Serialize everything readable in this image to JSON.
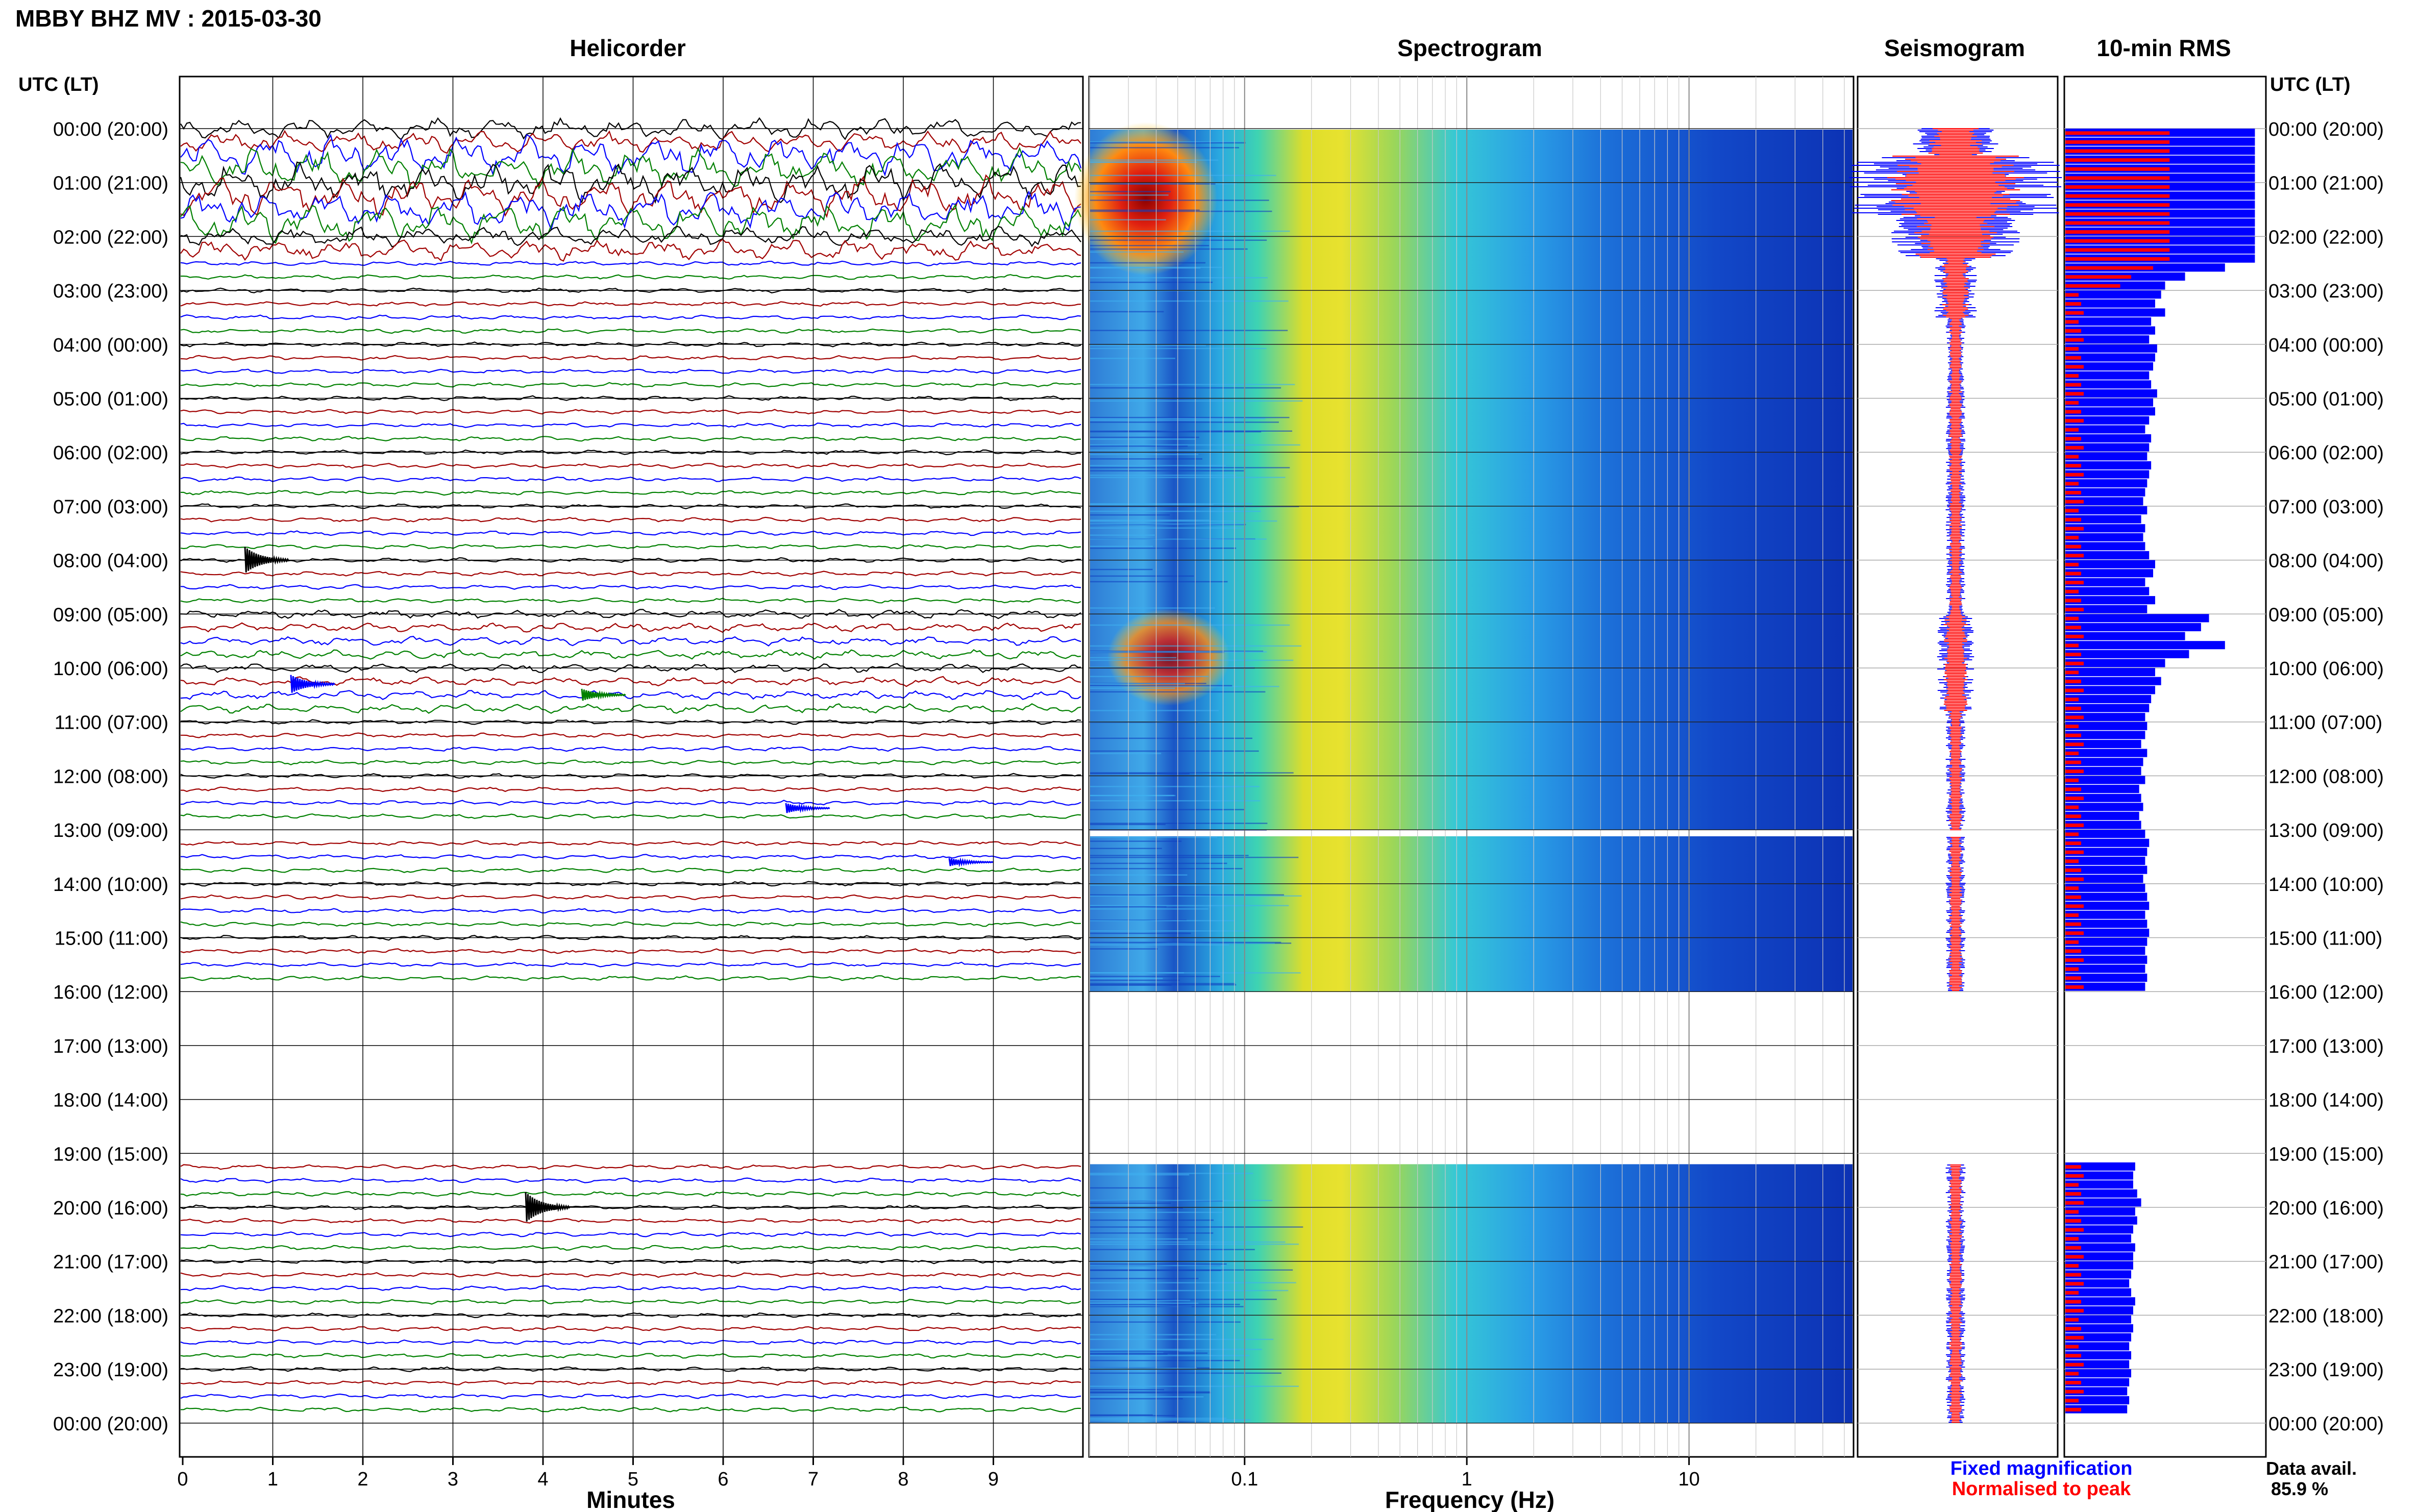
{
  "title": "MBBY BHZ MV : 2015-03-30",
  "panels": {
    "helicorder": "Helicorder",
    "spectrogram": "Spectrogram",
    "seismogram": "Seismogram",
    "rms": "10-min RMS"
  },
  "axis_header_left": "UTC (LT)",
  "axis_header_right": "UTC (LT)",
  "hour_labels": [
    "00:00 (20:00)",
    "01:00 (21:00)",
    "02:00 (22:00)",
    "03:00 (23:00)",
    "04:00 (00:00)",
    "05:00 (01:00)",
    "06:00 (02:00)",
    "07:00 (03:00)",
    "08:00 (04:00)",
    "09:00 (05:00)",
    "10:00 (06:00)",
    "11:00 (07:00)",
    "12:00 (08:00)",
    "13:00 (09:00)",
    "14:00 (10:00)",
    "15:00 (11:00)",
    "16:00 (12:00)",
    "17:00 (13:00)",
    "18:00 (14:00)",
    "19:00 (15:00)",
    "20:00 (16:00)",
    "21:00 (17:00)",
    "22:00 (18:00)",
    "23:00 (19:00)",
    "00:00 (20:00)"
  ],
  "xlabel_helicorder": "Minutes",
  "minute_ticks": [
    "0",
    "1",
    "2",
    "3",
    "4",
    "5",
    "6",
    "7",
    "8",
    "9"
  ],
  "xlabel_spectrogram": "Frequency (Hz)",
  "freq_ticks": [
    "0.1",
    "1",
    "10"
  ],
  "legend": {
    "fixed": "Fixed magnification",
    "normalised": "Normalised to peak"
  },
  "data_avail": {
    "label": "Data avail.",
    "value": "85.9 %"
  },
  "colors": {
    "blue": "#0000ff",
    "red": "#ff0000",
    "green": "#008000",
    "darkred": "#a00000",
    "black": "#000000"
  },
  "chart_data": {
    "type": "heatmap",
    "station": "MBBY BHZ MV",
    "date": "2015-03-30",
    "gaps_utc_hours": [
      [
        13.0,
        13.12
      ],
      [
        16.0,
        19.2
      ]
    ],
    "freq_range_hz": [
      0.02,
      55
    ],
    "minutes_range": [
      0,
      10
    ],
    "rms_10min": [
      0.95,
      0.95,
      0.95,
      0.95,
      0.95,
      0.95,
      0.95,
      0.95,
      0.95,
      0.95,
      0.95,
      0.95,
      0.95,
      0.95,
      0.95,
      0.8,
      0.6,
      0.5,
      0.48,
      0.45,
      0.5,
      0.43,
      0.45,
      0.42,
      0.46,
      0.45,
      0.44,
      0.42,
      0.43,
      0.46,
      0.44,
      0.45,
      0.42,
      0.4,
      0.43,
      0.42,
      0.41,
      0.43,
      0.42,
      0.41,
      0.4,
      0.39,
      0.41,
      0.38,
      0.4,
      0.39,
      0.4,
      0.42,
      0.45,
      0.44,
      0.4,
      0.42,
      0.45,
      0.41,
      0.72,
      0.68,
      0.6,
      0.8,
      0.62,
      0.5,
      0.45,
      0.48,
      0.45,
      0.43,
      0.42,
      0.4,
      0.41,
      0.4,
      0.38,
      0.41,
      0.39,
      0.38,
      0.4,
      0.37,
      0.38,
      0.39,
      0.37,
      0.38,
      0.4,
      0.42,
      0.41,
      0.4,
      0.41,
      0.39,
      0.4,
      0.41,
      0.42,
      0.4,
      0.41,
      0.42,
      0.41,
      0.4,
      0.41,
      0.4,
      0.41,
      0.4,
      null,
      null,
      null,
      null,
      null,
      null,
      null,
      null,
      null,
      null,
      null,
      null,
      null,
      null,
      null,
      null,
      null,
      null,
      null,
      0.35,
      0.34,
      0.34,
      0.36,
      0.38,
      0.35,
      0.36,
      0.34,
      0.33,
      0.35,
      0.34,
      0.34,
      0.33,
      0.32,
      0.33,
      0.35,
      0.34,
      0.33,
      0.34,
      0.33,
      0.32,
      0.33,
      0.32,
      0.33,
      0.32,
      0.31,
      0.32,
      0.31
    ]
  }
}
